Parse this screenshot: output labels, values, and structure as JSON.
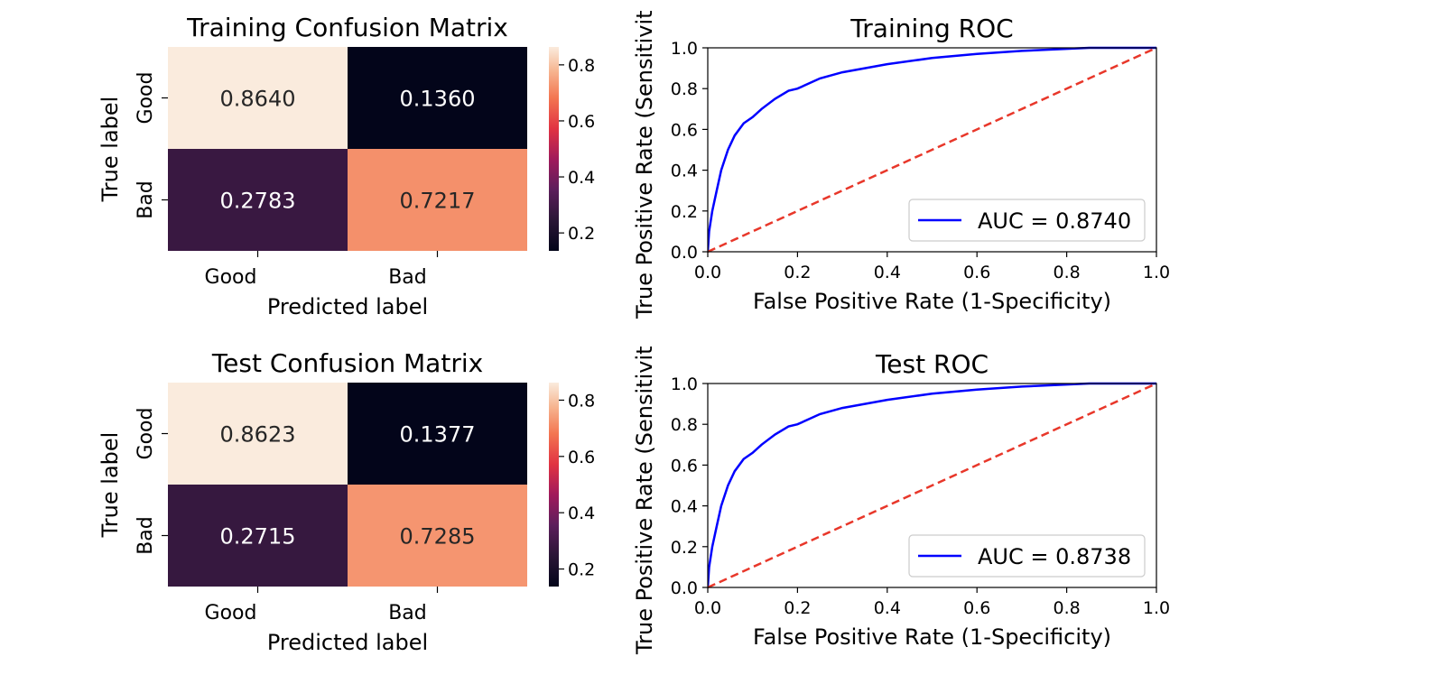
{
  "chart_data": [
    {
      "type": "heatmap",
      "title": "Training Confusion Matrix",
      "xlabel": "Predicted label",
      "ylabel": "True label",
      "x_categories": [
        "Good",
        "Bad"
      ],
      "y_categories": [
        "Good",
        "Bad"
      ],
      "values": [
        [
          0.864,
          0.136
        ],
        [
          0.2783,
          0.7217
        ]
      ],
      "value_labels": [
        [
          "0.8640",
          "0.1360"
        ],
        [
          "0.2783",
          "0.7217"
        ]
      ],
      "colorbar": {
        "range": [
          0.136,
          0.864
        ],
        "ticks": [
          "0.2",
          "0.4",
          "0.6",
          "0.8"
        ],
        "tick_values": [
          0.2,
          0.4,
          0.6,
          0.8
        ],
        "colormap": "rocket"
      }
    },
    {
      "type": "line",
      "title": "Training ROC",
      "xlabel": "False Positive Rate (1-Specificity)",
      "ylabel": "True Positive Rate (Sensitivit",
      "xlim": [
        0,
        1
      ],
      "ylim": [
        0,
        1
      ],
      "xticks": [
        "0.0",
        "0.2",
        "0.4",
        "0.6",
        "0.8",
        "1.0"
      ],
      "yticks": [
        "0.0",
        "0.2",
        "0.4",
        "0.6",
        "0.8",
        "1.0"
      ],
      "legend_position": "lower-right",
      "series": [
        {
          "name": "AUC = 0.8740",
          "color": "#0000ff",
          "style": "solid",
          "x": [
            0.0,
            0.003,
            0.01,
            0.02,
            0.03,
            0.045,
            0.06,
            0.08,
            0.1,
            0.12,
            0.15,
            0.18,
            0.2,
            0.25,
            0.3,
            0.35,
            0.4,
            0.5,
            0.6,
            0.7,
            0.8,
            0.85,
            0.9,
            1.0
          ],
          "y": [
            0.0,
            0.1,
            0.2,
            0.3,
            0.4,
            0.5,
            0.57,
            0.63,
            0.66,
            0.7,
            0.75,
            0.79,
            0.8,
            0.85,
            0.88,
            0.9,
            0.92,
            0.95,
            0.97,
            0.985,
            0.995,
            1.0,
            1.0,
            1.0
          ]
        },
        {
          "color": "#e8372a",
          "style": "dashed",
          "x": [
            0,
            1
          ],
          "y": [
            0,
            1
          ]
        }
      ]
    },
    {
      "type": "heatmap",
      "title": "Test Confusion Matrix",
      "xlabel": "Predicted label",
      "ylabel": "True label",
      "x_categories": [
        "Good",
        "Bad"
      ],
      "y_categories": [
        "Good",
        "Bad"
      ],
      "values": [
        [
          0.8623,
          0.1377
        ],
        [
          0.2715,
          0.7285
        ]
      ],
      "value_labels": [
        [
          "0.8623",
          "0.1377"
        ],
        [
          "0.2715",
          "0.7285"
        ]
      ],
      "colorbar": {
        "range": [
          0.1377,
          0.8623
        ],
        "ticks": [
          "0.2",
          "0.4",
          "0.6",
          "0.8"
        ],
        "tick_values": [
          0.2,
          0.4,
          0.6,
          0.8
        ],
        "colormap": "rocket"
      }
    },
    {
      "type": "line",
      "title": "Test ROC",
      "xlabel": "False Positive Rate (1-Specificity)",
      "ylabel": "True Positive Rate (Sensitivit",
      "xlim": [
        0,
        1
      ],
      "ylim": [
        0,
        1
      ],
      "xticks": [
        "0.0",
        "0.2",
        "0.4",
        "0.6",
        "0.8",
        "1.0"
      ],
      "yticks": [
        "0.0",
        "0.2",
        "0.4",
        "0.6",
        "0.8",
        "1.0"
      ],
      "legend_position": "lower-right",
      "series": [
        {
          "name": "AUC = 0.8738",
          "color": "#0000ff",
          "style": "solid",
          "x": [
            0.0,
            0.003,
            0.01,
            0.02,
            0.03,
            0.045,
            0.06,
            0.08,
            0.1,
            0.12,
            0.15,
            0.18,
            0.2,
            0.25,
            0.3,
            0.35,
            0.4,
            0.5,
            0.6,
            0.7,
            0.8,
            0.85,
            0.9,
            1.0
          ],
          "y": [
            0.0,
            0.1,
            0.2,
            0.3,
            0.4,
            0.5,
            0.57,
            0.63,
            0.66,
            0.7,
            0.75,
            0.79,
            0.8,
            0.85,
            0.88,
            0.9,
            0.92,
            0.95,
            0.97,
            0.985,
            0.995,
            1.0,
            1.0,
            1.0
          ]
        },
        {
          "color": "#e8372a",
          "style": "dashed",
          "x": [
            0,
            1
          ],
          "y": [
            0,
            1
          ]
        }
      ]
    }
  ]
}
